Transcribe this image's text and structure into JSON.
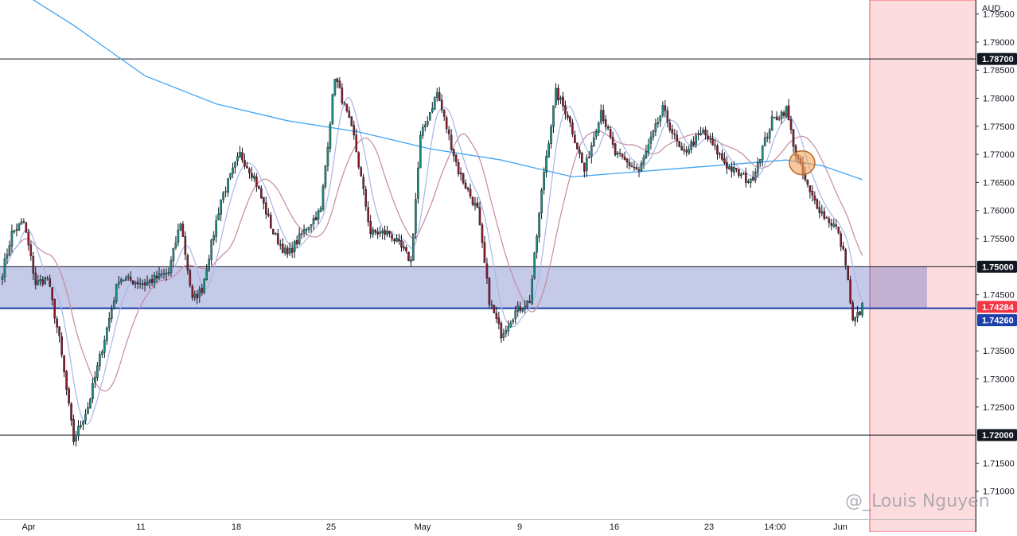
{
  "chart_data": {
    "type": "candlestick",
    "currency_label": "AUD",
    "y_range": [
      1.705,
      1.7975
    ],
    "y_ticks": [
      "1.79500",
      "1.79000",
      "1.78500",
      "1.78000",
      "1.77500",
      "1.77000",
      "1.76500",
      "1.76000",
      "1.75500",
      "1.74500",
      "1.73500",
      "1.73000",
      "1.72500",
      "1.71500",
      "1.71000"
    ],
    "x_labels": [
      "Apr",
      "11",
      "18",
      "25",
      "May",
      "9",
      "16",
      "23",
      "14:00",
      "Jun"
    ],
    "horizontal_lines": [
      {
        "price": 1.787,
        "label": "1.78700",
        "color": "#131722"
      },
      {
        "price": 1.75,
        "label": "1.75000",
        "color": "#131722"
      },
      {
        "price": 1.7426,
        "label": "1.74260",
        "color": "#1c3fa8"
      },
      {
        "price": 1.72,
        "label": "1.72000",
        "color": "#131722"
      }
    ],
    "current_price": {
      "price": 1.74284,
      "label": "1.74284",
      "color": "#f23645"
    },
    "zone": {
      "top": 1.75,
      "bottom": 1.7426,
      "color": "#3f51b5"
    },
    "highlight_color": "#f7525f",
    "marker_color": "#f5a35a",
    "up_color": "#1e8e7e",
    "down_color": "#8b1a2b",
    "waypoints": [
      [
        0,
        1.749
      ],
      [
        4,
        1.756
      ],
      [
        9,
        1.758
      ],
      [
        14,
        1.747
      ],
      [
        19,
        1.748
      ],
      [
        24,
        1.737
      ],
      [
        30,
        1.719
      ],
      [
        36,
        1.725
      ],
      [
        44,
        1.739
      ],
      [
        49,
        1.748
      ],
      [
        60,
        1.747
      ],
      [
        70,
        1.749
      ],
      [
        75,
        1.758
      ],
      [
        80,
        1.744
      ],
      [
        84,
        1.746
      ],
      [
        92,
        1.762
      ],
      [
        100,
        1.77
      ],
      [
        106,
        1.766
      ],
      [
        114,
        1.756
      ],
      [
        120,
        1.752
      ],
      [
        128,
        1.757
      ],
      [
        134,
        1.76
      ],
      [
        140,
        1.784
      ],
      [
        148,
        1.773
      ],
      [
        155,
        1.756
      ],
      [
        163,
        1.756
      ],
      [
        172,
        1.751
      ],
      [
        176,
        1.773
      ],
      [
        183,
        1.781
      ],
      [
        192,
        1.767
      ],
      [
        200,
        1.76
      ],
      [
        205,
        1.744
      ],
      [
        210,
        1.738
      ],
      [
        216,
        1.742
      ],
      [
        222,
        1.744
      ],
      [
        228,
        1.767
      ],
      [
        233,
        1.781
      ],
      [
        238,
        1.777
      ],
      [
        245,
        1.767
      ],
      [
        252,
        1.778
      ],
      [
        258,
        1.77
      ],
      [
        268,
        1.767
      ],
      [
        278,
        1.778
      ],
      [
        286,
        1.77
      ],
      [
        295,
        1.774
      ],
      [
        305,
        1.768
      ],
      [
        315,
        1.765
      ],
      [
        324,
        1.776
      ],
      [
        330,
        1.778
      ],
      [
        334,
        1.77
      ],
      [
        340,
        1.763
      ],
      [
        346,
        1.759
      ],
      [
        351,
        1.757
      ],
      [
        355,
        1.751
      ],
      [
        358,
        1.74
      ],
      [
        362,
        1.7428
      ]
    ],
    "ma_slow": [
      [
        0,
        1.801
      ],
      [
        30,
        1.793
      ],
      [
        60,
        1.784
      ],
      [
        90,
        1.779
      ],
      [
        120,
        1.776
      ],
      [
        150,
        1.774
      ],
      [
        180,
        1.771
      ],
      [
        210,
        1.769
      ],
      [
        240,
        1.766
      ],
      [
        270,
        1.767
      ],
      [
        300,
        1.768
      ],
      [
        330,
        1.769
      ],
      [
        345,
        1.768
      ],
      [
        362,
        1.7655
      ]
    ]
  },
  "watermark": "@_Louis Nguyen"
}
